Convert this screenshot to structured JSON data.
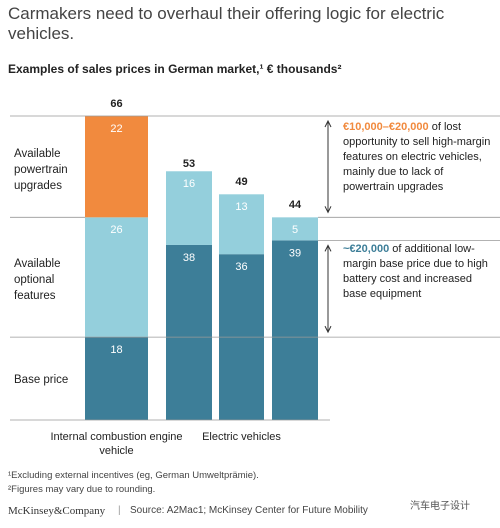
{
  "chart_data": {
    "type": "stacked-bar",
    "title": "Carmakers need to overhaul their offering logic for electric vehicles.",
    "subtitle": "Examples of sales prices in German market,¹ € thousands²",
    "categories": [
      "Internal combustion engine vehicle",
      null,
      "Electric vehicles",
      null
    ],
    "series": [
      {
        "name": "Base price",
        "color": "#3d7e98",
        "values": [
          18,
          38,
          36,
          39
        ]
      },
      {
        "name": "Available optional features",
        "color": "#94cfdc",
        "values": [
          26,
          16,
          13,
          5
        ]
      },
      {
        "name": "Available powertrain upgrades",
        "color": "#f18a3e",
        "values": [
          22,
          null,
          null,
          null
        ]
      }
    ],
    "totals": [
      66,
      53,
      49,
      44
    ],
    "annotations": [
      {
        "highlight": "€10,000–€20,000",
        "text": " of lost opportunity to sell high-margin features on electric vehicles, mainly due to lack of powertrain upgrades",
        "color": "#f18a3e"
      },
      {
        "highlight": "~€20,000",
        "text": " of additional low-margin base price due to high battery cost and increased base equipment",
        "color": "#3d7e98"
      }
    ],
    "footnotes": [
      "¹Excluding external incentives (eg, German Umweltprämie).",
      "²Figures may vary due to rounding."
    ],
    "brand": "McKinsey&Company",
    "source": "Source: A2Mac1; McKinsey Center for Future Mobility",
    "watermark": "汽车电子设计"
  }
}
